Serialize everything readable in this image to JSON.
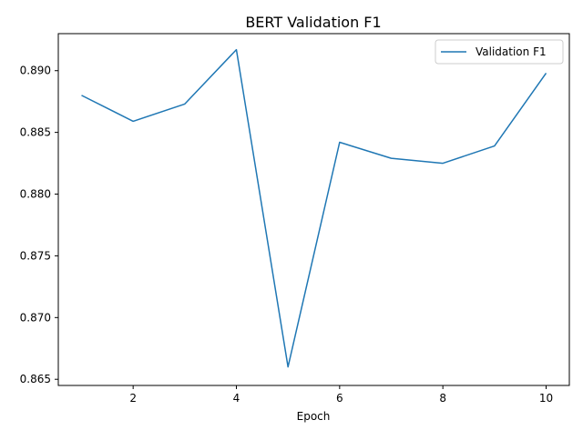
{
  "chart_data": {
    "type": "line",
    "title": "BERT Validation F1",
    "xlabel": "Epoch",
    "ylabel": "",
    "xlim": [
      0.55,
      10.45
    ],
    "ylim": [
      0.8645,
      0.893
    ],
    "x_ticks": [
      2,
      4,
      6,
      8,
      10
    ],
    "x_tick_labels": [
      "2",
      "4",
      "6",
      "8",
      "10"
    ],
    "y_ticks": [
      0.865,
      0.87,
      0.875,
      0.88,
      0.885,
      0.89
    ],
    "y_tick_labels": [
      "0.865",
      "0.870",
      "0.875",
      "0.880",
      "0.885",
      "0.890"
    ],
    "grid": false,
    "legend_position": "upper right",
    "series": [
      {
        "name": "Validation F1",
        "color": "#1f77b4",
        "x": [
          1,
          2,
          3,
          4,
          5,
          6,
          7,
          8,
          9,
          10
        ],
        "y": [
          0.888,
          0.8859,
          0.8873,
          0.8917,
          0.866,
          0.8842,
          0.8829,
          0.8825,
          0.8839,
          0.8898
        ]
      }
    ]
  }
}
